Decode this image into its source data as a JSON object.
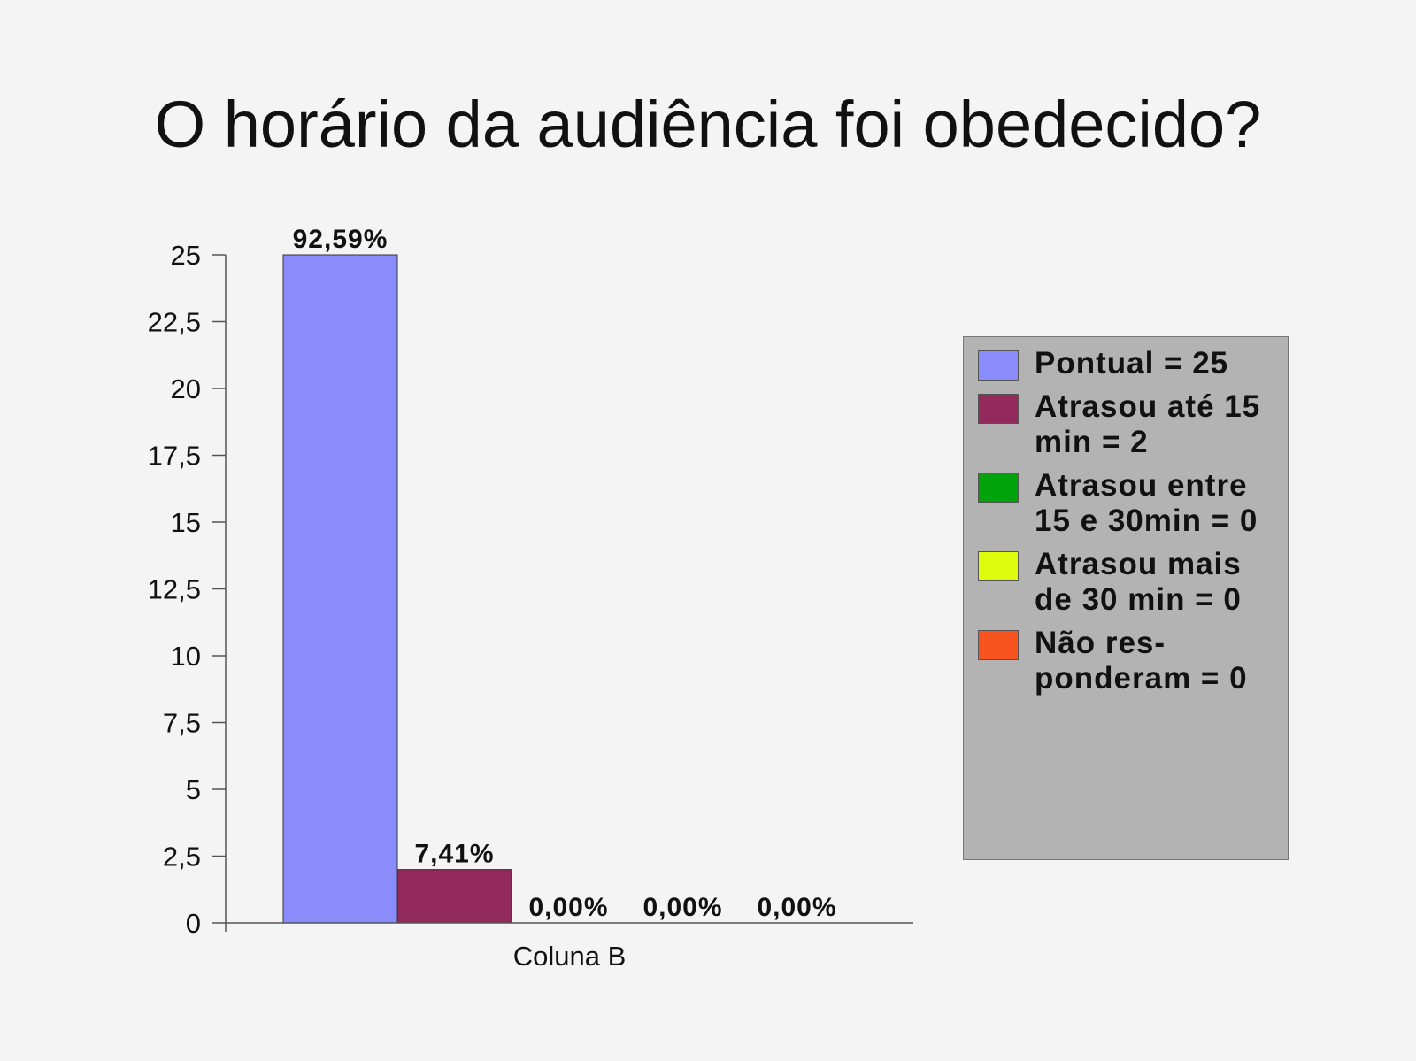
{
  "title": "O horário da audiência foi obedecido?",
  "chart_data": {
    "type": "bar",
    "categories": [
      "Coluna B"
    ],
    "xlabel": "",
    "ylabel": "",
    "ylim": [
      0,
      25
    ],
    "yticks": [
      "0",
      "2,5",
      "5",
      "7,5",
      "10",
      "12,5",
      "15",
      "17,5",
      "20",
      "22,5",
      "25"
    ],
    "ytick_values": [
      0,
      2.5,
      5,
      7.5,
      10,
      12.5,
      15,
      17.5,
      20,
      22.5,
      25
    ],
    "grid": false,
    "legend_position": "right",
    "series": [
      {
        "name": "Pontual = 25",
        "values": [
          25
        ],
        "data_label": "92,59%",
        "color": "#8b8cfb"
      },
      {
        "name": "Atrasou até 15 min = 2",
        "values": [
          2
        ],
        "data_label": "7,41%",
        "color": "#922a5c"
      },
      {
        "name": "Atrasou entre 15 e 30min = 0",
        "values": [
          0
        ],
        "data_label": "0,00%",
        "color": "#00a30b"
      },
      {
        "name": "Atrasou mais de 30 min = 0",
        "values": [
          0
        ],
        "data_label": "0,00%",
        "color": "#ddfc0b"
      },
      {
        "name": "Não res-ponderam = 0",
        "values": [
          0
        ],
        "data_label": "0,00%",
        "color": "#f6531f"
      }
    ]
  }
}
